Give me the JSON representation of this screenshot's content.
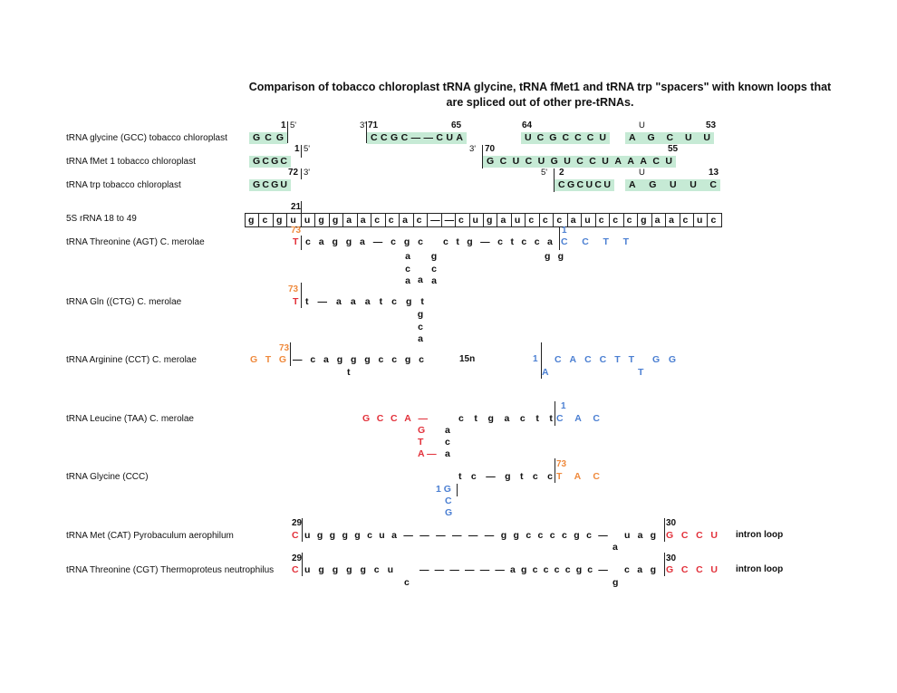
{
  "title": [
    "Comparison of tobacco chloroplast tRNA glycine, tRNA fMet1 and tRNA trp \"spacers\" with known loops that",
    "are spliced out of other pre-tRNAs."
  ],
  "colors": {
    "highlight": "#c6ead5",
    "red": "#e2303a",
    "orange": "#ef8a3d",
    "blue": "#4b7fd2"
  },
  "labels": [
    "tRNA glycine (GCC) tobacco chloroplast",
    "tRNA fMet 1 tobacco chloroplast",
    "tRNA trp tobacco chloroplast",
    "5S rRNA 18 to 49",
    "tRNA Threonine (AGT) C. merolae",
    "tRNA Gln ((CTG) C. merolae",
    "tRNA Arginine (CCT) C. merolae",
    "tRNA Leucine (TAA) C. merolae",
    "tRNA Glycine (CCC)",
    "tRNA Met (CAT) Pyrobaculum aerophilum",
    "tRNA Threonine (CGT) Thermoproteus neutrophilus"
  ],
  "gly": {
    "s1": "G C G",
    "n1": "1",
    "p5": "5'",
    "p3": "3'",
    "n71": "71",
    "s2": "C C G C — — C U A",
    "n65": "65",
    "n64": "64",
    "s3": "U C G C C C U",
    "u": "U",
    "s4": "A G C U U",
    "n53": "53"
  },
  "fmet": {
    "s1": "G C G C",
    "n1": "1",
    "p5": "5'",
    "p3": "3'",
    "n70": "70",
    "s2": "G C U C U G U C C U A A A C U",
    "n55": "55"
  },
  "trp": {
    "s1": "G C G U",
    "n72": "72",
    "p3": "3'",
    "p5": "5'",
    "n2": "2",
    "s2": "C G C U C U",
    "u": "U",
    "s3": "A G U U C",
    "n13": "13"
  },
  "rrna": {
    "n21": "21",
    "cells": [
      "g",
      "c",
      "g",
      "u",
      "u",
      "g",
      "g",
      "a",
      "a",
      "c",
      "c",
      "a",
      "c",
      "—",
      "—",
      "c",
      "u",
      "g",
      "a",
      "u",
      "c",
      "c",
      "c",
      "a",
      "u",
      "c",
      "c",
      "c",
      "g",
      "a",
      "a",
      "c",
      "u",
      "c"
    ]
  },
  "thr": {
    "n73": "73",
    "t": "T",
    "s1": "c a g g a — c g c",
    "s2": "c t g — c t c c a",
    "n1": "1",
    "s3": "C C T T",
    "c1": [
      "a",
      "c",
      "a"
    ],
    "c2": [
      "g",
      "c",
      "a"
    ],
    "c3": "a",
    "gg": "g g"
  },
  "gln": {
    "n73": "73",
    "t": "T",
    "s1": "t — a a a t c g t",
    "c": [
      "g",
      "c",
      "a"
    ]
  },
  "arg": {
    "n73": "73",
    "s0": "G T G",
    "s1": "— c a g g g c c g c",
    "t": "t",
    "n15": "15n",
    "n1": "1",
    "a": "A",
    "s2": "C A C C T T",
    "t2": "T",
    "s3": "G G"
  },
  "leu": {
    "s0": "G C C A —",
    "s1": "c t g a c t t",
    "n1": "1",
    "s2": "C A C",
    "r": [
      "G",
      "T",
      "A —"
    ],
    "k": [
      "a",
      "c",
      "a"
    ]
  },
  "glyc": {
    "s1": "t c — g t c c",
    "n73": "73",
    "s2": "T A C",
    "b1": "1 G",
    "b2": "C",
    "b3": "G"
  },
  "met": {
    "n29": "29",
    "c": "C",
    "s1": "u g g g g c u a — — — — — — g g c c c c g c —",
    "a": "a",
    "s2": "u a g",
    "n30": "30",
    "s3": "G C C U",
    "note": "intron loop"
  },
  "thr2": {
    "n29": "29",
    "c": "C",
    "s1": "u g g g g c u",
    "cc": "c",
    "s2": "— — — — — — a g c c c c g c —",
    "g": "g",
    "s3": "c a g",
    "n30": "30",
    "s4": "G C C U",
    "note": "intron loop"
  }
}
